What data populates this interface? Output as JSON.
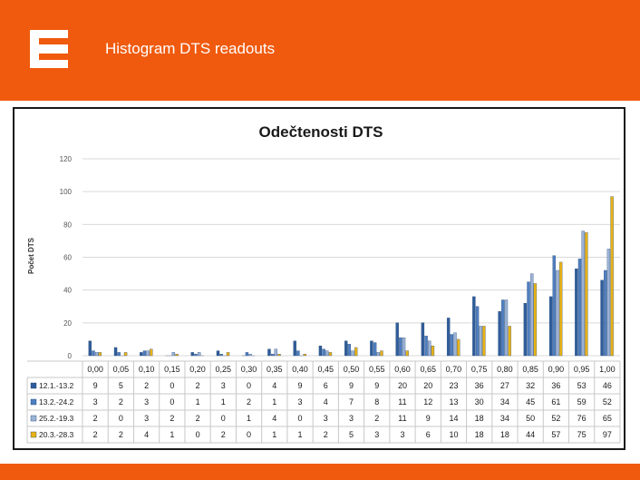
{
  "slide": {
    "title": "Histogram DTS readouts",
    "accent_color": "#f05a0e",
    "logo_icon": "cez-e-logo-icon"
  },
  "chart_data": {
    "type": "bar",
    "title": "Odečtenosti DTS",
    "ylabel": "Počet DTS",
    "xlabel": "",
    "ylim": [
      0,
      120
    ],
    "yticks": [
      0,
      20,
      40,
      60,
      80,
      100,
      120
    ],
    "grid": true,
    "legend": "table-below",
    "categories": [
      "0,00",
      "0,05",
      "0,10",
      "0,15",
      "0,20",
      "0,25",
      "0,30",
      "0,35",
      "0,40",
      "0,45",
      "0,50",
      "0,55",
      "0,60",
      "0,65",
      "0,70",
      "0,75",
      "0,80",
      "0,85",
      "0,90",
      "0,95",
      "1,00"
    ],
    "series": [
      {
        "name": "12.1.-13.2",
        "color": "#2f5d9a",
        "values": [
          9,
          5,
          2,
          0,
          2,
          3,
          0,
          4,
          9,
          6,
          9,
          9,
          20,
          20,
          23,
          36,
          27,
          32,
          36,
          53,
          46
        ]
      },
      {
        "name": "13.2.-24.2",
        "color": "#4f7fc0",
        "values": [
          3,
          2,
          3,
          0,
          1,
          1,
          2,
          1,
          3,
          4,
          7,
          8,
          11,
          12,
          13,
          30,
          34,
          45,
          61,
          59,
          52
        ]
      },
      {
        "name": "25.2.-19.3",
        "color": "#9cb3d6",
        "values": [
          2,
          0,
          3,
          2,
          2,
          0,
          1,
          4,
          0,
          3,
          3,
          2,
          11,
          9,
          14,
          18,
          34,
          50,
          52,
          76,
          65
        ]
      },
      {
        "name": "20.3.-28.3",
        "color": "#e8b317",
        "values": [
          2,
          2,
          4,
          1,
          0,
          2,
          0,
          1,
          1,
          2,
          5,
          3,
          3,
          6,
          10,
          18,
          18,
          44,
          57,
          75,
          97
        ]
      }
    ]
  }
}
